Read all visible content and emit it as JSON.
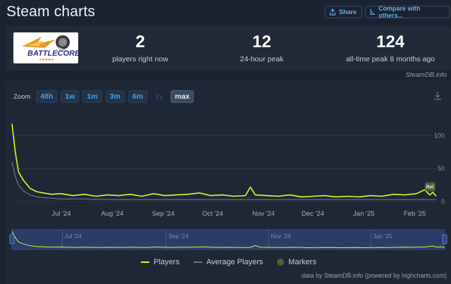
{
  "header": {
    "title": "Steam charts",
    "share_label": "Share",
    "compare_label": "Compare with others..."
  },
  "logo": {
    "text_main": "BATTLECORE",
    "text_sub": "ARENA"
  },
  "stats": [
    {
      "value": "2",
      "label": "players right now"
    },
    {
      "value": "12",
      "label": "24-hour peak"
    },
    {
      "value": "124",
      "label": "all-time peak 8 months ago"
    }
  ],
  "source": "SteamDB.info",
  "zoom": {
    "label": "Zoom",
    "buttons": [
      "48h",
      "1w",
      "1m",
      "3m",
      "6m",
      "1y",
      "max"
    ],
    "disabled": "1y",
    "active": "max"
  },
  "legend": {
    "players": "Players",
    "average": "Average Players",
    "markers": "Markers"
  },
  "colors": {
    "players": "#d4ff2a",
    "average": "#6f7680",
    "markers": "#4a6630",
    "navigator_fill": "#2b3c66",
    "accent": "#5fb0f0"
  },
  "credit": "data by SteamDB.info (powered by highcharts.com)",
  "chart_data": {
    "type": "line",
    "x_unit": "date",
    "x_range": [
      "2024-06-01",
      "2025-02-14"
    ],
    "x_ticks": [
      "Jul '24",
      "Aug '24",
      "Sep '24",
      "Oct '24",
      "Nov '24",
      "Dec '24",
      "Jan '25",
      "Feb '25"
    ],
    "y_ticks": [
      "0",
      "50",
      "100"
    ],
    "ylim": [
      0,
      125
    ],
    "navigator_ticks": [
      "Jul '24",
      "Sep '24",
      "Nov '24",
      "Jan '25"
    ],
    "series": [
      {
        "name": "Players",
        "x": [
          "2024-06-01",
          "2024-06-03",
          "2024-06-05",
          "2024-06-08",
          "2024-06-12",
          "2024-06-16",
          "2024-06-20",
          "2024-06-25",
          "2024-07-01",
          "2024-07-08",
          "2024-07-15",
          "2024-07-22",
          "2024-07-29",
          "2024-08-05",
          "2024-08-12",
          "2024-08-19",
          "2024-08-26",
          "2024-09-02",
          "2024-09-09",
          "2024-09-16",
          "2024-09-23",
          "2024-09-30",
          "2024-10-07",
          "2024-10-14",
          "2024-10-21",
          "2024-10-24",
          "2024-10-27",
          "2024-11-03",
          "2024-11-10",
          "2024-11-17",
          "2024-11-24",
          "2024-12-01",
          "2024-12-08",
          "2024-12-15",
          "2024-12-22",
          "2024-12-29",
          "2025-01-05",
          "2025-01-12",
          "2025-01-19",
          "2025-01-26",
          "2025-02-02",
          "2025-02-07",
          "2025-02-10",
          "2025-02-12",
          "2025-02-14"
        ],
        "values": [
          118,
          75,
          45,
          32,
          20,
          15,
          13,
          11,
          12,
          9,
          11,
          8,
          10,
          9,
          11,
          8,
          12,
          9,
          10,
          11,
          13,
          9,
          10,
          8,
          9,
          22,
          10,
          9,
          8,
          10,
          7,
          8,
          9,
          7,
          8,
          7,
          9,
          8,
          11,
          10,
          12,
          18,
          10,
          14,
          8
        ]
      },
      {
        "name": "Average Players",
        "x": [
          "2024-06-01",
          "2024-06-03",
          "2024-06-05",
          "2024-06-08",
          "2024-06-12",
          "2024-06-16",
          "2024-06-20",
          "2024-06-25",
          "2024-07-01",
          "2024-07-15",
          "2024-08-01",
          "2024-09-01",
          "2024-10-01",
          "2024-11-01",
          "2024-12-01",
          "2025-01-01",
          "2025-02-01",
          "2025-02-14"
        ],
        "values": [
          60,
          38,
          25,
          16,
          10,
          7,
          6,
          5,
          4,
          4,
          3,
          3,
          3,
          3,
          3,
          3,
          3,
          3
        ]
      }
    ],
    "markers": [
      {
        "x": "2025-02-10",
        "label": "Rel"
      }
    ]
  }
}
